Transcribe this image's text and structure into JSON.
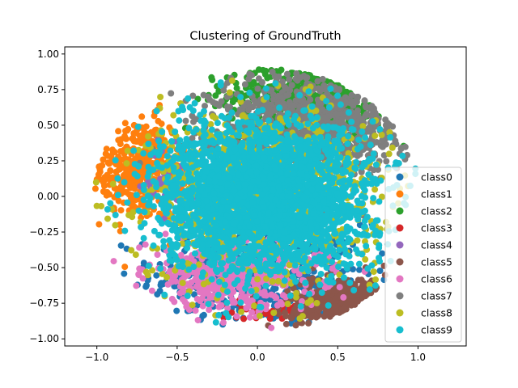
{
  "chart_data": {
    "type": "scatter",
    "title": "Clustering of GroundTruth",
    "xlabel": "",
    "ylabel": "",
    "xlim": [
      -1.2,
      1.3
    ],
    "ylim": [
      -1.05,
      1.05
    ],
    "x_ticks": [
      -1.0,
      -0.5,
      0.0,
      0.5,
      1.0
    ],
    "x_tick_labels": [
      "−1.0",
      "−0.5",
      "0.0",
      "0.5",
      "1.0"
    ],
    "y_ticks": [
      1.0,
      0.75,
      0.5,
      0.25,
      0.0,
      -0.25,
      -0.5,
      -0.75,
      -1.0
    ],
    "y_tick_labels": [
      "1.00",
      "0.75",
      "0.50",
      "0.25",
      "0.00",
      "−0.25",
      "−0.50",
      "−0.75",
      "−1.00"
    ],
    "grid": false,
    "legend_position": "center-right",
    "series": [
      {
        "name": "class0",
        "color": "#1f77b4",
        "center": [
          0.0,
          -0.55
        ],
        "spread": [
          0.55,
          0.3
        ],
        "region": "lower ring edge"
      },
      {
        "name": "class1",
        "color": "#ff7f0e",
        "center": [
          -0.75,
          0.2
        ],
        "spread": [
          0.25,
          0.3
        ],
        "region": "left ring edge"
      },
      {
        "name": "class2",
        "color": "#2ca02c",
        "center": [
          0.35,
          0.7
        ],
        "spread": [
          0.45,
          0.2
        ],
        "region": "top ring edge"
      },
      {
        "name": "class3",
        "color": "#d62728",
        "center": [
          0.0,
          -0.8
        ],
        "spread": [
          0.2,
          0.05
        ],
        "region": "bottom, mostly hidden"
      },
      {
        "name": "class4",
        "color": "#9467bd",
        "center": [
          -0.55,
          0.1
        ],
        "spread": [
          0.1,
          0.2
        ],
        "region": "left, mostly hidden"
      },
      {
        "name": "class5",
        "color": "#8c564b",
        "center": [
          0.55,
          -0.75
        ],
        "spread": [
          0.3,
          0.15
        ],
        "region": "bottom-right ring edge"
      },
      {
        "name": "class6",
        "color": "#e377c2",
        "center": [
          -0.15,
          -0.55
        ],
        "spread": [
          0.45,
          0.2
        ],
        "region": "lower-left ring"
      },
      {
        "name": "class7",
        "color": "#7f7f7f",
        "center": [
          0.35,
          0.5
        ],
        "spread": [
          0.5,
          0.3
        ],
        "region": "upper ring"
      },
      {
        "name": "class8",
        "color": "#bcbd22",
        "center": [
          0.05,
          0.0
        ],
        "spread": [
          0.6,
          0.5
        ],
        "region": "inner ring"
      },
      {
        "name": "class9",
        "color": "#17becf",
        "center": [
          0.05,
          0.0
        ],
        "spread": [
          0.55,
          0.45
        ],
        "region": "core"
      }
    ]
  }
}
